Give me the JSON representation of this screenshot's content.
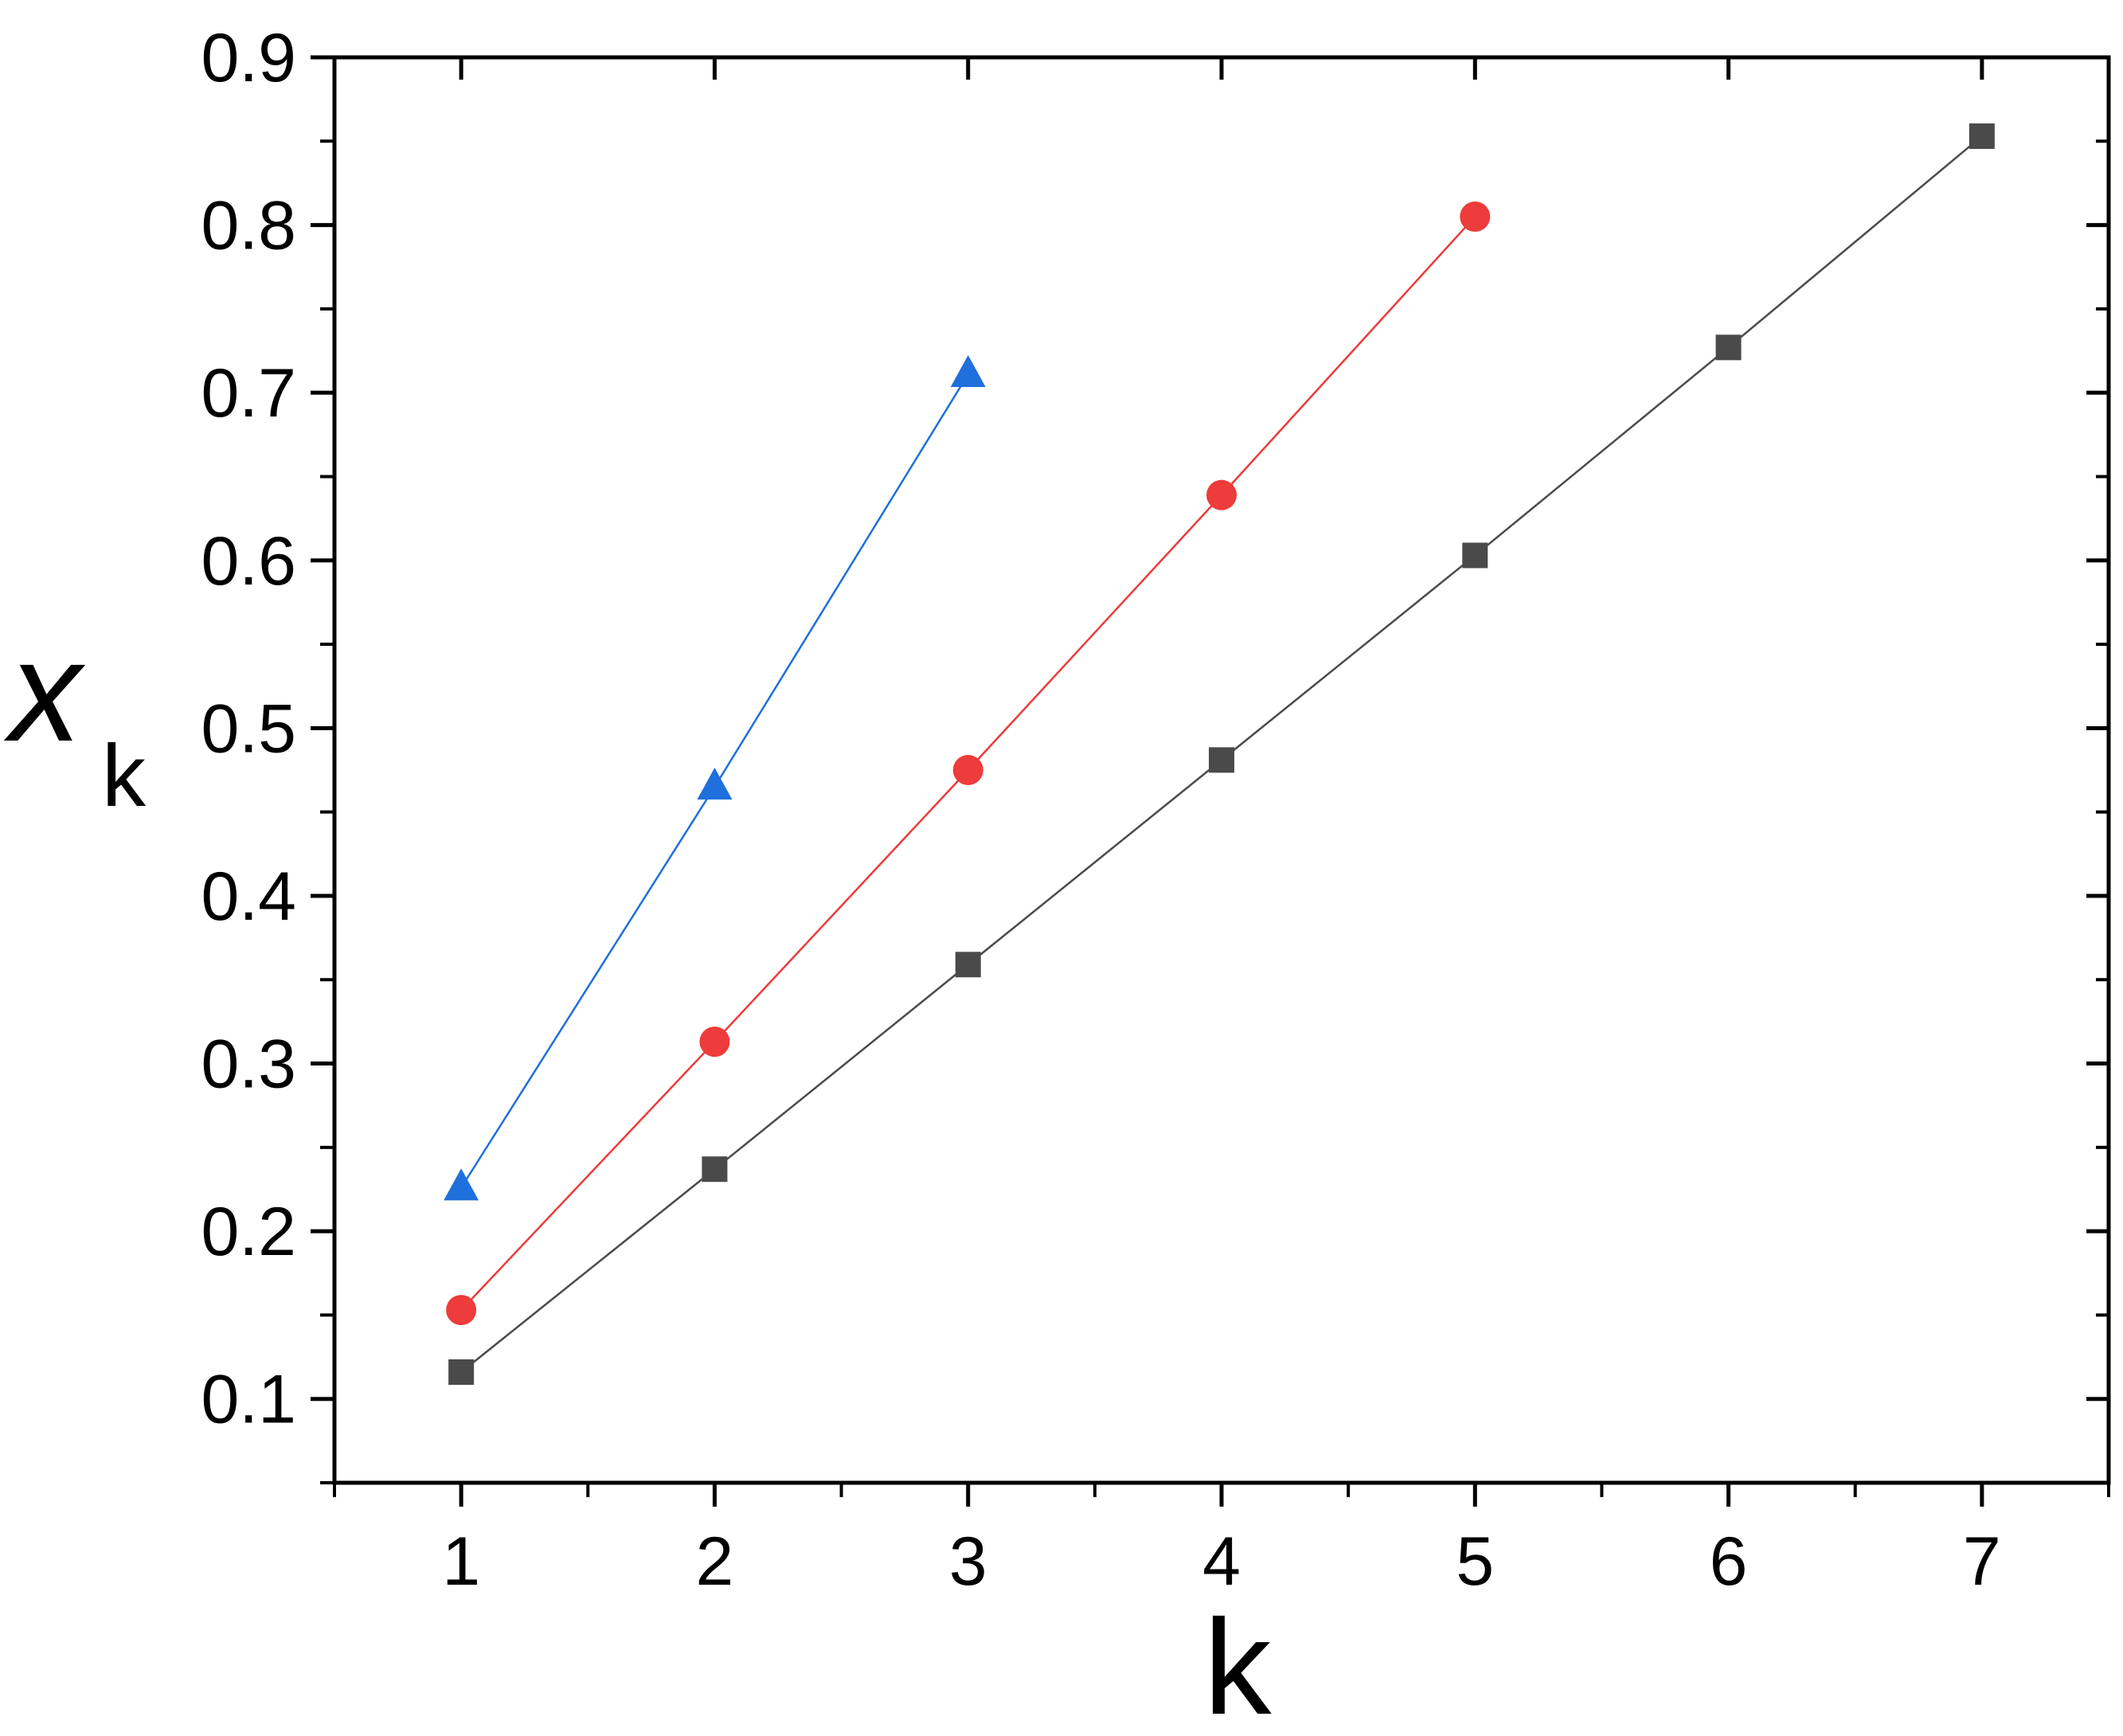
{
  "chart_data": {
    "type": "line",
    "xlabel": "k",
    "ylabel": "x",
    "ylabel_subscript": "k",
    "xlim": [
      0.5,
      7.5
    ],
    "ylim": [
      0.05,
      0.9
    ],
    "x_ticks": [
      1,
      2,
      3,
      4,
      5,
      6,
      7
    ],
    "x_tick_labels": [
      "1",
      "2",
      "3",
      "4",
      "5",
      "6",
      "7"
    ],
    "y_ticks": [
      0.1,
      0.2,
      0.3,
      0.4,
      0.5,
      0.6,
      0.7,
      0.8,
      0.9
    ],
    "y_tick_labels": [
      "0.1",
      "0.2",
      "0.3",
      "0.4",
      "0.5",
      "0.6",
      "0.7",
      "0.8",
      "0.9"
    ],
    "grid": false,
    "series": [
      {
        "marker": "square",
        "color": "#4a4a4a",
        "x": [
          1,
          2,
          3,
          4,
          5,
          6,
          7
        ],
        "y": [
          0.116,
          0.237,
          0.359,
          0.481,
          0.603,
          0.727,
          0.853
        ]
      },
      {
        "marker": "circle",
        "color": "#ee3b3b",
        "x": [
          1,
          2,
          3,
          4,
          5
        ],
        "y": [
          0.153,
          0.313,
          0.475,
          0.639,
          0.805
        ]
      },
      {
        "marker": "triangle",
        "color": "#1f6fdc",
        "x": [
          1,
          2,
          3
        ],
        "y": [
          0.226,
          0.465,
          0.711
        ]
      }
    ]
  }
}
